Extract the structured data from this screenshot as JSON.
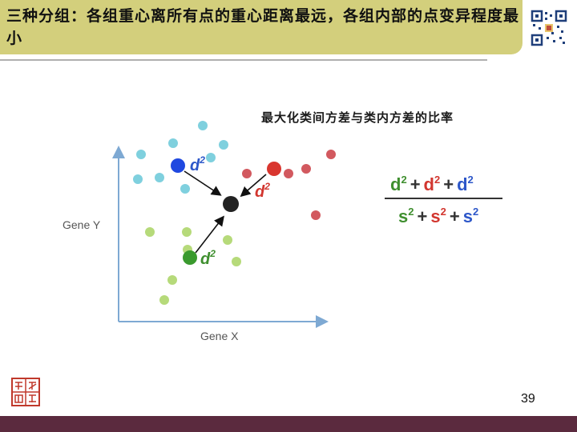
{
  "header": {
    "title": "三种分组：各组重心离所有点的重心距离最远，各组内部的点变异程度最小"
  },
  "subtitle": "最大化类间方差与类内方差的比率",
  "figure": {
    "x_axis_label": "Gene X",
    "y_axis_label": "Gene Y",
    "centroid_label": "d",
    "centroid_exponent": "2",
    "colors": {
      "cyan": "#7fd0de",
      "red": "#d2595f",
      "green": "#b6da7a",
      "blue_centroid": "#1f48e0",
      "red_centroid": "#d9362f",
      "green_centroid": "#3a9a2e",
      "overall_centroid": "#222222"
    }
  },
  "formula": {
    "numerator_terms": [
      "d",
      "d",
      "d"
    ],
    "denominator_terms": [
      "s",
      "s",
      "s"
    ],
    "exponent": "2",
    "plus": "+",
    "term_colors": [
      "#3f8f2f",
      "#d2362f",
      "#2d57c9"
    ]
  },
  "footer": {
    "page_number": "39"
  }
}
